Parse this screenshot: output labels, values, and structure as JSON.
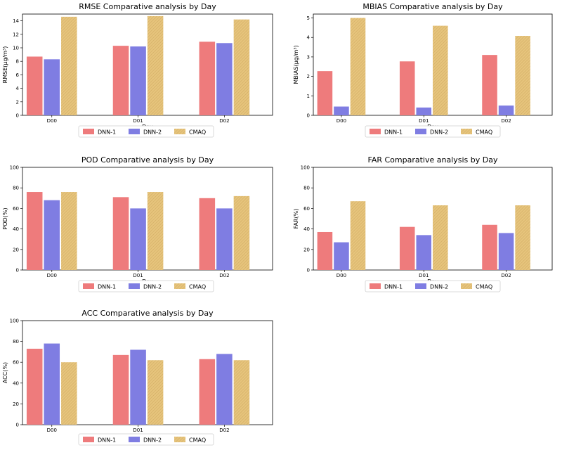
{
  "figure": {
    "colors": {
      "DNN-1": "#ee7b7c",
      "DNN-2": "#7f7de2",
      "CMAQ": "#e6c47c"
    }
  },
  "chart_data": [
    {
      "id": "rmse",
      "type": "bar",
      "title": "RMSE Comparative analysis by Day",
      "xlabel": "Day",
      "ylabel": "RMSE(µg/m³)",
      "categories": [
        "D00",
        "D01",
        "D02"
      ],
      "ylim": [
        0,
        15
      ],
      "yticks": [
        0,
        2,
        4,
        6,
        8,
        10,
        12,
        14
      ],
      "series": [
        {
          "name": "DNN-1",
          "values": [
            8.7,
            10.3,
            10.9
          ]
        },
        {
          "name": "DNN-2",
          "values": [
            8.3,
            10.2,
            10.7
          ]
        },
        {
          "name": "CMAQ",
          "values": [
            14.6,
            14.7,
            14.2
          ]
        }
      ],
      "legend": [
        "DNN-1",
        "DNN-2",
        "CMAQ"
      ]
    },
    {
      "id": "mbias",
      "type": "bar",
      "title": "MBIAS Comparative analysis by Day",
      "xlabel": "Day",
      "ylabel": "MBIAS(µg/m³)",
      "categories": [
        "D00",
        "D01",
        "D02"
      ],
      "ylim": [
        0,
        5.2
      ],
      "yticks": [
        0,
        1,
        2,
        3,
        4,
        5
      ],
      "series": [
        {
          "name": "DNN-1",
          "values": [
            2.27,
            2.77,
            3.1
          ]
        },
        {
          "name": "DNN-2",
          "values": [
            0.45,
            0.4,
            0.5
          ]
        },
        {
          "name": "CMAQ",
          "values": [
            5.0,
            4.6,
            4.08
          ]
        }
      ],
      "legend": [
        "DNN-1",
        "DNN-2",
        "CMAQ"
      ]
    },
    {
      "id": "pod",
      "type": "bar",
      "title": "POD Comparative analysis by Day",
      "xlabel": "Day",
      "ylabel": "POD(%)",
      "categories": [
        "D00",
        "D01",
        "D02"
      ],
      "ylim": [
        0,
        100
      ],
      "yticks": [
        0,
        20,
        40,
        60,
        80,
        100
      ],
      "series": [
        {
          "name": "DNN-1",
          "values": [
            76,
            71,
            70
          ]
        },
        {
          "name": "DNN-2",
          "values": [
            68,
            60,
            60
          ]
        },
        {
          "name": "CMAQ",
          "values": [
            76,
            76,
            72
          ]
        }
      ],
      "legend": [
        "DNN-1",
        "DNN-2",
        "CMAQ"
      ]
    },
    {
      "id": "far",
      "type": "bar",
      "title": "FAR Comparative analysis by Day",
      "xlabel": "Day",
      "ylabel": "FAR(%)",
      "categories": [
        "D00",
        "D01",
        "D02"
      ],
      "ylim": [
        0,
        100
      ],
      "yticks": [
        0,
        20,
        40,
        60,
        80,
        100
      ],
      "series": [
        {
          "name": "DNN-1",
          "values": [
            37,
            42,
            44
          ]
        },
        {
          "name": "DNN-2",
          "values": [
            27,
            34,
            36
          ]
        },
        {
          "name": "CMAQ",
          "values": [
            67,
            63,
            63
          ]
        }
      ],
      "legend": [
        "DNN-1",
        "DNN-2",
        "CMAQ"
      ]
    },
    {
      "id": "acc",
      "type": "bar",
      "title": "ACC Comparative analysis by Day",
      "xlabel": "Day",
      "ylabel": "ACC(%)",
      "categories": [
        "D00",
        "D01",
        "D02"
      ],
      "ylim": [
        0,
        100
      ],
      "yticks": [
        0,
        20,
        40,
        60,
        80,
        100
      ],
      "series": [
        {
          "name": "DNN-1",
          "values": [
            73,
            67,
            63
          ]
        },
        {
          "name": "DNN-2",
          "values": [
            78,
            72,
            68
          ]
        },
        {
          "name": "CMAQ",
          "values": [
            60,
            62,
            62
          ]
        }
      ],
      "legend": [
        "DNN-1",
        "DNN-2",
        "CMAQ"
      ]
    }
  ]
}
